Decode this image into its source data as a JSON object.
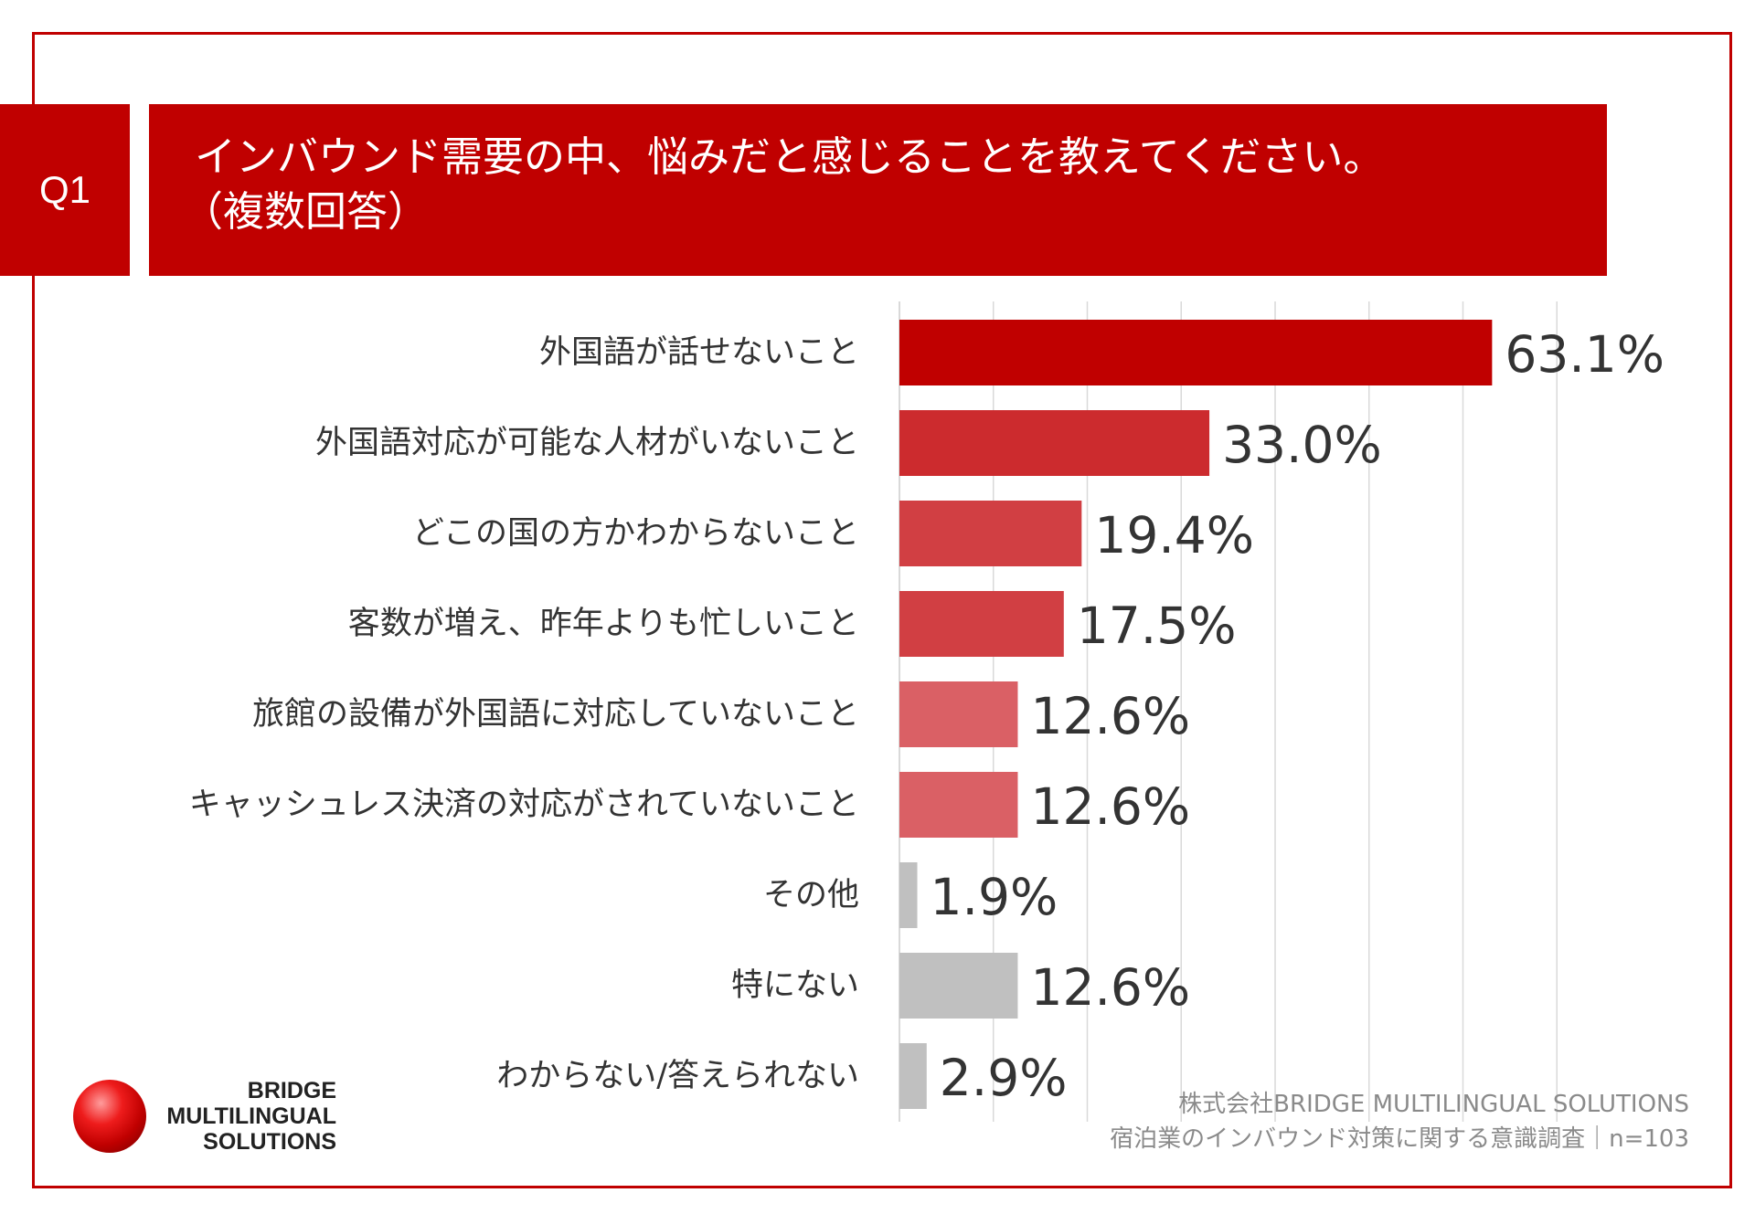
{
  "header": {
    "q_label": "Q1",
    "title": "インバウンド需要の中、悩みだと感じることを教えてください。",
    "subtitle": "（複数回答）"
  },
  "colors": {
    "frame": "#c00000",
    "header_bg": "#c00000",
    "gray_bar": "#c0c0c0",
    "grid": "#d9d9d9"
  },
  "chart_data": {
    "type": "bar",
    "orientation": "horizontal",
    "xlim": [
      0,
      70
    ],
    "grid": true,
    "categories": [
      "外国語が話せないこと",
      "外国語対応が可能な人材がいないこと",
      "どこの国の方かわからないこと",
      "客数が増え、昨年よりも忙しいこと",
      "旅館の設備が外国語に対応していないこと",
      "キャッシュレス決済の対応がされていないこと",
      "その他",
      "特にない",
      "わからない/答えられない"
    ],
    "values": [
      63.1,
      33.0,
      19.4,
      17.5,
      12.6,
      12.6,
      1.9,
      12.6,
      2.9
    ],
    "value_labels": [
      "63.1%",
      "33.0%",
      "19.4%",
      "17.5%",
      "12.6%",
      "12.6%",
      "1.9%",
      "12.6%",
      "2.9%"
    ],
    "bar_colors": [
      "#c00000",
      "#cc2b2e",
      "#d13f43",
      "#d13f43",
      "#da6065",
      "#da6065",
      "#c0c0c0",
      "#c0c0c0",
      "#c0c0c0"
    ]
  },
  "logo": {
    "line1": "BRIDGE",
    "line2": "MULTILINGUAL",
    "line3": "SOLUTIONS"
  },
  "credit": {
    "line1": "株式会社BRIDGE MULTILINGUAL SOLUTIONS",
    "line2": "宿泊業のインバウンド対策に関する意識調査｜n=103"
  }
}
